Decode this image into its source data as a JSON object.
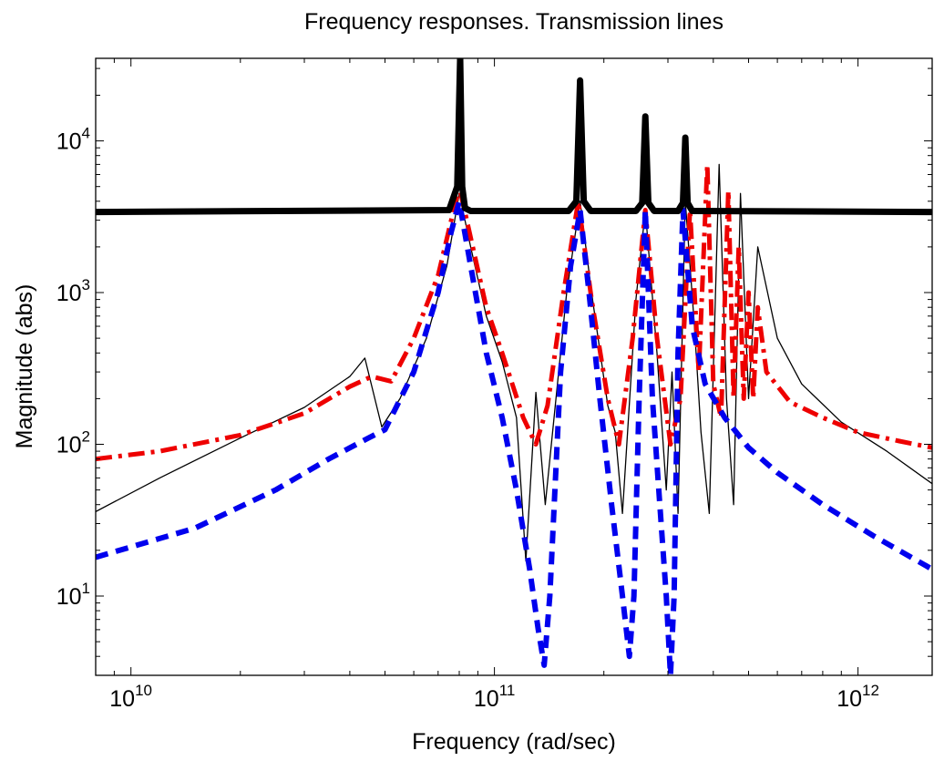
{
  "chart_data": {
    "type": "line",
    "title": "Frequency responses. Transmission lines",
    "xlabel": "Frequency  (rad/sec)",
    "ylabel": "Magnitude (abs)",
    "xscale": "log",
    "yscale": "log",
    "xlim": [
      8000000000.0,
      1600000000000.0
    ],
    "ylim": [
      3,
      35000
    ],
    "x_ticks": [
      {
        "value": 10000000000.0,
        "base": "10",
        "exp": "10"
      },
      {
        "value": 100000000000.0,
        "base": "10",
        "exp": "11"
      },
      {
        "value": 1000000000000.0,
        "base": "10",
        "exp": "12"
      }
    ],
    "y_ticks": [
      {
        "value": 10,
        "base": "10",
        "exp": "1"
      },
      {
        "value": 100,
        "base": "10",
        "exp": "2"
      },
      {
        "value": 1000,
        "base": "10",
        "exp": "3"
      },
      {
        "value": 10000,
        "base": "10",
        "exp": "4"
      }
    ],
    "grid": false,
    "series": [
      {
        "color": "#000000",
        "style": "solid",
        "width": 1.3,
        "x": [
          8000000000.0,
          12000000000.0,
          20000000000.0,
          30000000000.0,
          40000000000.0,
          44000000000.0,
          49000000000.0,
          55000000000.0,
          65000000000.0,
          74000000000.0,
          80000000000.0,
          86000000000.0,
          95000000000.0,
          105000000000.0,
          115000000000.0,
          122000000000.0,
          130000000000.0,
          138000000000.0,
          145000000000.0,
          158000000000.0,
          172000000000.0,
          185000000000.0,
          205000000000.0,
          215000000000.0,
          225000000000.0,
          245000000000.0,
          260000000000.0,
          280000000000.0,
          297000000000.0,
          308000000000.0,
          320000000000.0,
          335000000000.0,
          355000000000.0,
          370000000000.0,
          390000000000.0,
          415000000000.0,
          435000000000.0,
          455000000000.0,
          475000000000.0,
          500000000000.0,
          530000000000.0,
          600000000000.0,
          700000000000.0,
          900000000000.0,
          1200000000000.0,
          1600000000000.0
        ],
        "y": [
          36,
          60,
          110,
          175,
          280,
          370,
          130,
          200,
          500,
          1500,
          4500,
          2000,
          700,
          350,
          150,
          17,
          220,
          40,
          130,
          1000,
          4000,
          1000,
          180,
          120,
          35,
          900,
          3500,
          400,
          50,
          300,
          35,
          4000,
          600,
          120,
          35,
          7000,
          200,
          40,
          4500,
          200,
          2000,
          500,
          250,
          140,
          90,
          55
        ]
      },
      {
        "color": "#ee0000",
        "style": "dash-dot",
        "width": 5,
        "x": [
          8000000000.0,
          12000000000.0,
          20000000000.0,
          30000000000.0,
          40000000000.0,
          46000000000.0,
          52000000000.0,
          60000000000.0,
          70000000000.0,
          80000000000.0,
          88000000000.0,
          95000000000.0,
          105000000000.0,
          120000000000.0,
          130000000000.0,
          140000000000.0,
          155000000000.0,
          170000000000.0,
          185000000000.0,
          205000000000.0,
          220000000000.0,
          240000000000.0,
          260000000000.0,
          280000000000.0,
          305000000000.0,
          325000000000.0,
          345000000000.0,
          365000000000.0,
          385000000000.0,
          400000000000.0,
          420000000000.0,
          440000000000.0,
          455000000000.0,
          470000000000.0,
          485000000000.0,
          500000000000.0,
          515000000000.0,
          530000000000.0,
          560000000000.0,
          650000000000.0,
          800000000000.0,
          1000000000000.0,
          1300000000000.0,
          1600000000000.0
        ],
        "y": [
          80,
          90,
          115,
          160,
          240,
          280,
          260,
          500,
          1300,
          5000,
          1800,
          800,
          400,
          150,
          100,
          180,
          1000,
          4000,
          900,
          200,
          100,
          500,
          3500,
          500,
          100,
          200,
          3500,
          300,
          7000,
          250,
          150,
          4700,
          200,
          2000,
          200,
          1000,
          200,
          800,
          300,
          190,
          150,
          120,
          105,
          95
        ]
      },
      {
        "color": "#0000ee",
        "style": "dashed",
        "width": 6,
        "x": [
          8000000000.0,
          15000000000.0,
          25000000000.0,
          35000000000.0,
          45000000000.0,
          50000000000.0,
          60000000000.0,
          70000000000.0,
          76000000000.0,
          80000000000.0,
          86000000000.0,
          95000000000.0,
          105000000000.0,
          115000000000.0,
          125000000000.0,
          132000000000.0,
          137000000000.0,
          142000000000.0,
          152000000000.0,
          162000000000.0,
          172000000000.0,
          182000000000.0,
          195000000000.0,
          210000000000.0,
          225000000000.0,
          235000000000.0,
          242000000000.0,
          250000000000.0,
          260000000000.0,
          272000000000.0,
          285000000000.0,
          297000000000.0,
          305000000000.0,
          312000000000.0,
          320000000000.0,
          330000000000.0,
          350000000000.0,
          380000000000.0,
          430000000000.0,
          500000000000.0,
          600000000000.0,
          800000000000.0,
          1100000000000.0,
          1600000000000.0
        ],
        "y": [
          18,
          28,
          50,
          80,
          110,
          125,
          300,
          1000,
          2500,
          4000,
          1500,
          400,
          150,
          50,
          15,
          6,
          3.5,
          10,
          300,
          1500,
          3500,
          1000,
          200,
          40,
          10,
          4,
          10,
          200,
          3500,
          200,
          40,
          10,
          3,
          10,
          400,
          3500,
          600,
          250,
          150,
          95,
          65,
          40,
          25,
          15
        ]
      },
      {
        "color": "#000000",
        "style": "solid",
        "width": 7,
        "x": [
          8000000000.0,
          75000000000.0,
          79000000000.0,
          80500000000.0,
          81500000000.0,
          83000000000.0,
          86000000000.0,
          160000000000.0,
          168000000000.0,
          172000000000.0,
          176000000000.0,
          184000000000.0,
          245000000000.0,
          255000000000.0,
          260000000000.0,
          265000000000.0,
          275000000000.0,
          320000000000.0,
          330000000000.0,
          335000000000.0,
          340000000000.0,
          350000000000.0,
          1600000000000.0
        ],
        "y": [
          3400,
          3500,
          5000,
          35000,
          5000,
          3600,
          3450,
          3450,
          4000,
          25000,
          4000,
          3450,
          3450,
          3900,
          14500,
          3900,
          3450,
          3450,
          3900,
          10500,
          3900,
          3450,
          3400
        ]
      }
    ]
  }
}
